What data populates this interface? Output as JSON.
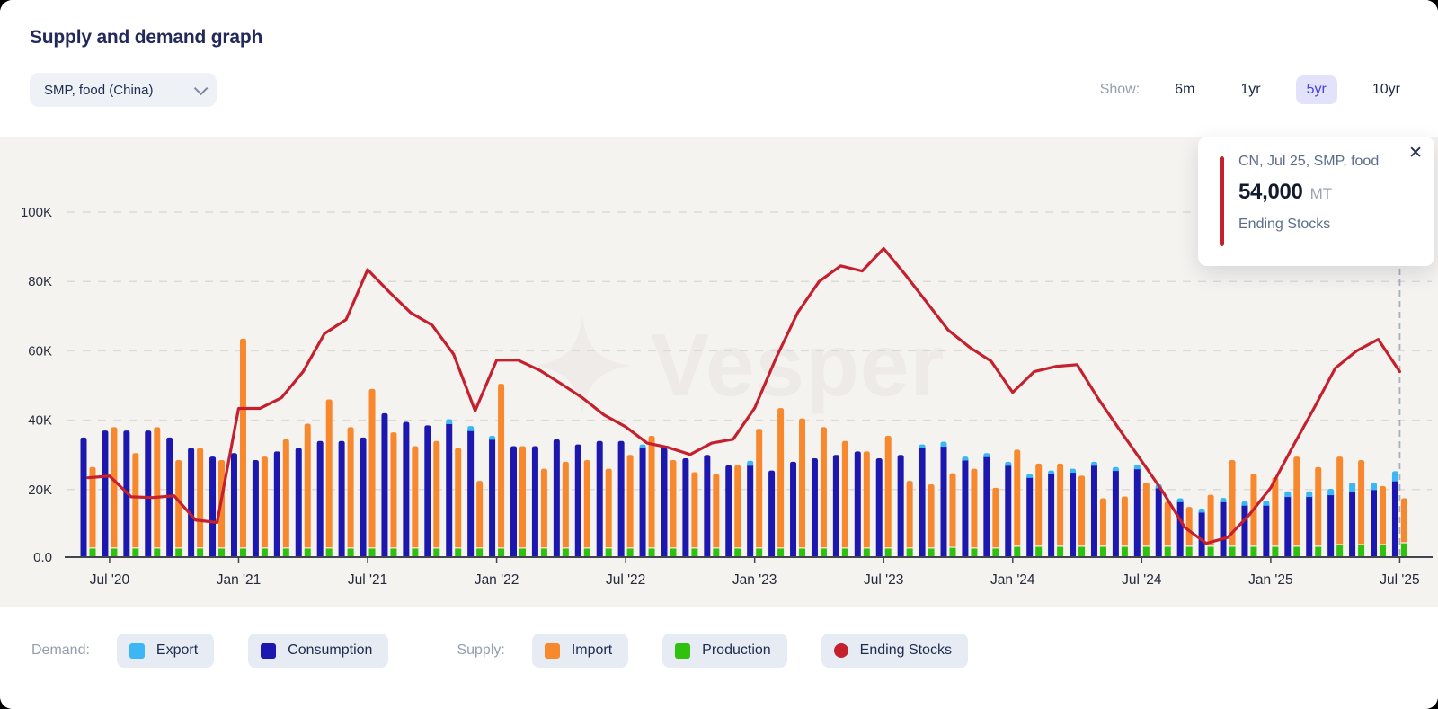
{
  "header": {
    "title": "Supply and demand graph",
    "dropdown": {
      "value": "SMP, food (China)"
    },
    "show": {
      "label": "Show:",
      "options": [
        {
          "label": "6m",
          "selected": false
        },
        {
          "label": "1yr",
          "selected": false
        },
        {
          "label": "5yr",
          "selected": true
        },
        {
          "label": "10yr",
          "selected": false
        }
      ]
    }
  },
  "tooltip": {
    "title": "CN, Jul 25, SMP, food",
    "value": "54,000",
    "unit": "MT",
    "series_label": "Ending Stocks"
  },
  "icons": {
    "close": "✕"
  },
  "watermark": {
    "text": "Vesper"
  },
  "legend": {
    "demand_label": "Demand:",
    "supply_label": "Supply:",
    "items": [
      {
        "label": "Export",
        "color_key": "export",
        "shape": "square"
      },
      {
        "label": "Consumption",
        "color_key": "consumption",
        "shape": "square"
      },
      {
        "label": "Import",
        "color_key": "import",
        "shape": "square"
      },
      {
        "label": "Production",
        "color_key": "production",
        "shape": "square"
      },
      {
        "label": "Ending Stocks",
        "color_key": "ending_stocks",
        "shape": "circle"
      }
    ]
  },
  "colors": {
    "export": "#3db6f5",
    "consumption": "#1c17ae",
    "import": "#f8882e",
    "production": "#2fc10d",
    "ending_stocks": "#c4202e",
    "accent_selected": "#4a43da"
  },
  "chart_data": {
    "type": "mixed-bar-line",
    "unit": "thousand MT",
    "categories": [
      "Jun '20",
      "Jul '20",
      "Aug '20",
      "Sep '20",
      "Oct '20",
      "Nov '20",
      "Dec '20",
      "Jan '21",
      "Feb '21",
      "Mar '21",
      "Apr '21",
      "May '21",
      "Jun '21",
      "Jul '21",
      "Aug '21",
      "Sep '21",
      "Oct '21",
      "Nov '21",
      "Dec '21",
      "Jan '22",
      "Feb '22",
      "Mar '22",
      "Apr '22",
      "May '22",
      "Jun '22",
      "Jul '22",
      "Aug '22",
      "Sep '22",
      "Oct '22",
      "Nov '22",
      "Dec '22",
      "Jan '23",
      "Feb '23",
      "Mar '23",
      "Apr '23",
      "May '23",
      "Jun '23",
      "Jul '23",
      "Aug '23",
      "Sep '23",
      "Oct '23",
      "Nov '23",
      "Dec '23",
      "Jan '24",
      "Feb '24",
      "Mar '24",
      "Apr '24",
      "May '24",
      "Jun '24",
      "Jul '24",
      "Aug '24",
      "Sep '24",
      "Oct '24",
      "Nov '24",
      "Dec '24",
      "Jan '25",
      "Feb '25",
      "Mar '25",
      "Apr '25",
      "May '25",
      "Jun '25",
      "Jul '25"
    ],
    "x_tick_indices": [
      1,
      7,
      13,
      19,
      25,
      31,
      37,
      43,
      49,
      55,
      61
    ],
    "x_tick_labels": [
      "Jul '20",
      "Jan '21",
      "Jul '21",
      "Jan '22",
      "Jul '22",
      "Jan '23",
      "Jul '23",
      "Jan '24",
      "Jul '24",
      "Jan '25",
      "Jul '25"
    ],
    "y_ticks": [
      {
        "v": 0,
        "label": "0.0"
      },
      {
        "v": 20,
        "label": "20K"
      },
      {
        "v": 40,
        "label": "40K"
      },
      {
        "v": 60,
        "label": "60K"
      },
      {
        "v": 80,
        "label": "80K"
      },
      {
        "v": 100,
        "label": "100K"
      }
    ],
    "ylim": [
      0,
      110
    ],
    "grid": true,
    "hover_month_index": 61,
    "series": [
      {
        "name": "Consumption",
        "group": "demand",
        "stack_order": 0,
        "values": [
          35,
          37,
          37,
          37,
          35,
          32,
          29.5,
          30.5,
          28.5,
          31,
          32,
          34,
          34,
          35,
          42,
          39.5,
          38.5,
          39.5,
          37.5,
          35,
          32.5,
          32.5,
          34.5,
          33,
          34,
          34,
          32.5,
          32,
          29,
          30,
          27,
          27.5,
          25.5,
          28,
          29,
          30,
          31,
          29,
          30,
          32.5,
          33,
          29,
          30,
          27.5,
          24,
          25,
          25.5,
          27.5,
          26,
          26.5,
          21,
          17,
          14,
          17,
          16,
          16,
          18.5,
          18.5,
          19,
          20,
          20.5,
          23
        ]
      },
      {
        "name": "Export",
        "group": "demand",
        "stack_order": 1,
        "values": [
          0.3,
          0.3,
          0.3,
          0.3,
          0.3,
          0.3,
          0.3,
          0.3,
          0.3,
          0.3,
          0.3,
          0.3,
          0.3,
          0.3,
          0.3,
          0.3,
          0.3,
          0.8,
          0.8,
          0.5,
          0.3,
          0.3,
          0.3,
          0.3,
          0.3,
          0.4,
          0.5,
          0.3,
          0.3,
          0.3,
          0.3,
          0.8,
          0.4,
          0.4,
          0.4,
          0.4,
          0.4,
          0.4,
          0.4,
          0.5,
          0.8,
          0.5,
          0.5,
          0.5,
          0.5,
          0.5,
          0.5,
          0.5,
          0.5,
          0.6,
          0.5,
          0.5,
          0.5,
          0.6,
          0.6,
          0.8,
          1,
          1,
          1.2,
          2,
          1.5,
          2.3
        ]
      },
      {
        "name": "Production",
        "group": "supply",
        "stack_order": 0,
        "values": [
          3,
          3,
          3,
          3,
          3,
          3,
          3,
          3,
          3,
          3,
          3,
          3,
          3,
          3,
          3,
          3,
          3,
          3,
          3,
          3,
          3,
          3,
          3,
          3,
          3,
          3,
          3,
          3,
          3,
          3,
          3,
          3,
          3,
          3,
          3,
          3,
          3,
          3,
          3,
          3,
          3.2,
          3,
          3,
          3.5,
          3.5,
          3.5,
          3.5,
          3.5,
          3.5,
          3.5,
          3.5,
          3.5,
          3.5,
          3.5,
          3.5,
          3.5,
          3.5,
          3.5,
          4,
          4,
          4,
          4.5
        ]
      },
      {
        "name": "Import",
        "group": "supply",
        "stack_order": 1,
        "values": [
          23.5,
          35,
          27.5,
          35,
          25.5,
          29,
          25.5,
          60.5,
          26.5,
          31.5,
          36,
          43,
          35,
          46,
          33.5,
          29.5,
          31,
          29,
          19.5,
          47.5,
          29.5,
          23,
          25,
          25.5,
          23,
          27,
          32.5,
          25.5,
          22,
          21.5,
          24,
          34.5,
          40.5,
          37.5,
          35,
          31,
          28,
          32.5,
          19.5,
          18.5,
          21.5,
          23,
          17.5,
          28,
          24,
          24,
          20.5,
          14,
          14.5,
          18.5,
          13,
          11.5,
          15,
          25,
          21,
          20,
          26,
          23,
          25.5,
          24.5,
          17,
          13
        ]
      },
      {
        "name": "Ending Stocks",
        "group": "line",
        "values": [
          23.4,
          23.9,
          17.9,
          17.7,
          18.2,
          11.2,
          10.5,
          43.4,
          43.4,
          46.5,
          54,
          65,
          69,
          83.4,
          77,
          71,
          67.4,
          59,
          42.7,
          57.3,
          57.3,
          54.4,
          50.5,
          46.4,
          41.5,
          38.1,
          33.4,
          32.1,
          30.1,
          33.4,
          34.5,
          43.5,
          58,
          71,
          80,
          84.5,
          83,
          89.5,
          82,
          74,
          66,
          61,
          57,
          48,
          54,
          55.5,
          56,
          46,
          37,
          28.2,
          19.2,
          9.1,
          4.5,
          6.2,
          12.7,
          20.5,
          32.1,
          43.3,
          55,
          60,
          63.3,
          54
        ]
      }
    ]
  }
}
